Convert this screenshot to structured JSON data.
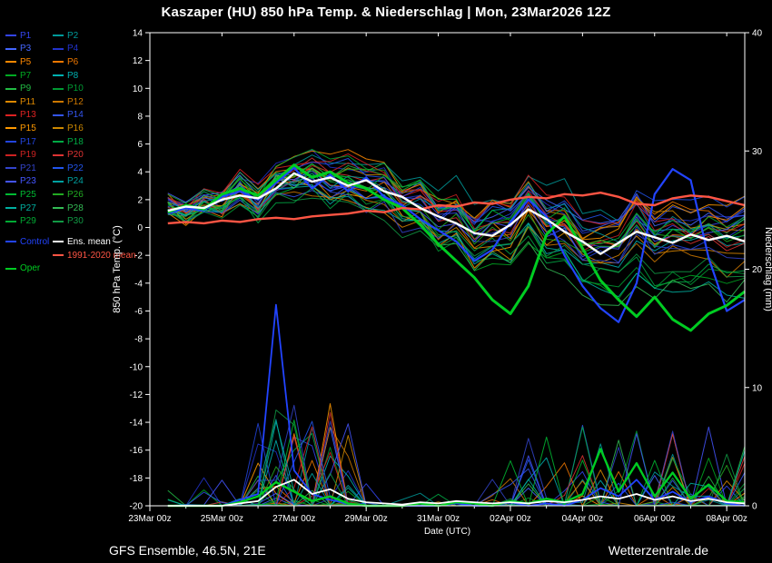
{
  "title": "Kaszaper  (HU)  850 hPa Temp. & Niederschlag | Mon, 23Mar2026 12Z",
  "footer": {
    "left": "GFS Ensemble, 46.5N, 21E",
    "right": "Wetterzentrale.de"
  },
  "chart_data": {
    "type": "line",
    "title": "Kaszaper (HU) 850 hPa Temp. & Niederschlag | Mon, 23Mar2026 12Z",
    "xlabel": "Date (UTC)",
    "ylabel_left": "850 hPa Temp. (°C)",
    "ylabel_right": "Niederschlag (mm)",
    "x_tick_labels": [
      "23Mar 00z",
      "25Mar 00z",
      "27Mar 00z",
      "29Mar 00z",
      "31Mar 00z",
      "02Apr 00z",
      "04Apr 00z",
      "06Apr 00z",
      "08Apr 00z"
    ],
    "x_tick_hours": [
      0,
      48,
      96,
      144,
      192,
      240,
      288,
      336,
      384
    ],
    "x_domain_hours": [
      0,
      396
    ],
    "y_left": {
      "min": -20,
      "max": 14,
      "ticks": [
        14,
        12,
        10,
        8,
        6,
        4,
        2,
        0,
        -2,
        -4,
        -6,
        -8,
        -10,
        -12,
        -14,
        -16,
        -18,
        -20
      ]
    },
    "y_right": {
      "min": 0,
      "max": 40,
      "ticks": [
        40,
        30,
        20,
        10,
        0
      ]
    },
    "grid": false,
    "legend_position": "left",
    "x_hours": [
      12,
      24,
      36,
      48,
      60,
      72,
      84,
      96,
      108,
      120,
      132,
      144,
      156,
      168,
      180,
      192,
      204,
      216,
      228,
      240,
      252,
      264,
      276,
      288,
      300,
      312,
      324,
      336,
      348,
      360,
      372,
      384,
      396
    ],
    "series": {
      "ens_mean_temp": [
        1.2,
        1.5,
        1.4,
        2.0,
        2.3,
        2.1,
        2.8,
        3.9,
        3.3,
        3.6,
        3.0,
        3.4,
        2.6,
        2.2,
        1.4,
        0.8,
        0.3,
        -0.4,
        -0.6,
        0.2,
        1.3,
        0.6,
        -0.3,
        -1.0,
        -1.9,
        -1.1,
        -0.3,
        -0.7,
        -1.1,
        -0.5,
        -0.9,
        -0.6,
        -1.0
      ],
      "control_temp": [
        1.0,
        1.4,
        1.2,
        2.2,
        2.6,
        2.0,
        3.2,
        4.3,
        2.8,
        3.8,
        2.6,
        3.6,
        2.2,
        1.6,
        0.6,
        -0.2,
        -1.0,
        -2.4,
        -1.6,
        0.4,
        2.0,
        0.8,
        -2.0,
        -4.2,
        -5.8,
        -6.8,
        -4.0,
        2.4,
        4.2,
        3.4,
        -2.2,
        -6.0,
        -5.2
      ],
      "oper_temp": [
        1.1,
        1.6,
        1.3,
        2.4,
        2.8,
        2.3,
        3.4,
        4.5,
        3.6,
        4.0,
        3.2,
        2.8,
        2.0,
        1.4,
        0.2,
        -1.2,
        -2.4,
        -3.6,
        -5.2,
        -6.2,
        -4.2,
        -0.5,
        0.8,
        -1.5,
        -3.8,
        -5.2,
        -6.4,
        -5.0,
        -6.6,
        -7.4,
        -6.2,
        -5.6,
        -4.6
      ],
      "clim_mean_temp": [
        0.3,
        0.4,
        0.3,
        0.5,
        0.4,
        0.6,
        0.7,
        0.6,
        0.8,
        0.9,
        1.0,
        1.2,
        1.1,
        1.4,
        1.3,
        1.6,
        1.5,
        1.8,
        1.7,
        2.0,
        2.2,
        2.1,
        2.4,
        2.3,
        2.5,
        2.2,
        1.7,
        1.6,
        2.1,
        2.3,
        2.2,
        1.9,
        1.6
      ],
      "ens_mean_precip": [
        0,
        0,
        0,
        0,
        0.2,
        0.4,
        1.6,
        2.2,
        1.0,
        1.4,
        0.6,
        0.3,
        0.2,
        0.1,
        0.3,
        0.2,
        0.4,
        0.3,
        0.2,
        0.3,
        0.2,
        0.4,
        0.3,
        0.5,
        0.8,
        0.6,
        1.0,
        0.5,
        0.8,
        0.4,
        0.6,
        0.3,
        0.2
      ],
      "control_precip": [
        0,
        0,
        0,
        0,
        0.5,
        1.0,
        17,
        3,
        1,
        0.5,
        0.2,
        0,
        0,
        0,
        0,
        0,
        0.2,
        0,
        0,
        0.3,
        0,
        0.2,
        0,
        0.5,
        1.5,
        0.8,
        2.2,
        0.5,
        1.2,
        0.3,
        0.8,
        0.2,
        0
      ],
      "oper_precip": [
        0,
        0,
        0,
        0,
        0.3,
        0.8,
        2.0,
        1.2,
        0.4,
        0.8,
        0.2,
        0,
        0,
        0,
        0.2,
        0,
        0.3,
        0.2,
        0,
        0.4,
        0.2,
        0.6,
        0.3,
        1.0,
        4.8,
        1.2,
        3.6,
        0.8,
        2.8,
        0.6,
        1.8,
        0.4,
        0.3
      ]
    },
    "special_series": [
      {
        "label": "Control",
        "color": "#2244ff",
        "width": 2.2,
        "temp_key": "control_temp",
        "precip_key": "control_precip"
      },
      {
        "label": "Oper",
        "color": "#00cc22",
        "width": 3.0,
        "temp_key": "oper_temp",
        "precip_key": "oper_precip"
      },
      {
        "label": "1991-2020 mean",
        "color": "#ff5544",
        "width": 2.4,
        "temp_key": "clim_mean_temp"
      },
      {
        "label": "Ens. mean",
        "color": "#ffffff",
        "width": 2.4,
        "temp_key": "ens_mean_temp",
        "precip_key": "ens_mean_precip"
      }
    ],
    "members": [
      {
        "label": "P1",
        "color": "#3344ee",
        "seed": 1
      },
      {
        "label": "P2",
        "color": "#009999",
        "seed": 2
      },
      {
        "label": "P3",
        "color": "#4466ff",
        "seed": 3
      },
      {
        "label": "P4",
        "color": "#2233cc",
        "seed": 4
      },
      {
        "label": "P5",
        "color": "#ff8800",
        "seed": 5
      },
      {
        "label": "P6",
        "color": "#ee7700",
        "seed": 6
      },
      {
        "label": "P7",
        "color": "#00aa22",
        "seed": 7
      },
      {
        "label": "P8",
        "color": "#00b0b0",
        "seed": 8
      },
      {
        "label": "P9",
        "color": "#22bb44",
        "seed": 9
      },
      {
        "label": "P10",
        "color": "#009933",
        "seed": 10
      },
      {
        "label": "P11",
        "color": "#dd8800",
        "seed": 11
      },
      {
        "label": "P12",
        "color": "#cc7700",
        "seed": 12
      },
      {
        "label": "P13",
        "color": "#dd2222",
        "seed": 13
      },
      {
        "label": "P14",
        "color": "#3355ee",
        "seed": 14
      },
      {
        "label": "P15",
        "color": "#ff9900",
        "seed": 15
      },
      {
        "label": "P16",
        "color": "#cc8800",
        "seed": 16
      },
      {
        "label": "P17",
        "color": "#2244dd",
        "seed": 17
      },
      {
        "label": "P18",
        "color": "#00aa44",
        "seed": 18
      },
      {
        "label": "P19",
        "color": "#cc2222",
        "seed": 19
      },
      {
        "label": "P20",
        "color": "#dd3333",
        "seed": 20
      },
      {
        "label": "P21",
        "color": "#3344cc",
        "seed": 21
      },
      {
        "label": "P22",
        "color": "#2255ee",
        "seed": 22
      },
      {
        "label": "P23",
        "color": "#4455ff",
        "seed": 23
      },
      {
        "label": "P24",
        "color": "#00a0a0",
        "seed": 24
      },
      {
        "label": "P25",
        "color": "#00bb33",
        "seed": 25
      },
      {
        "label": "P26",
        "color": "#22aa22",
        "seed": 26
      },
      {
        "label": "P27",
        "color": "#00b0a0",
        "seed": 27
      },
      {
        "label": "P28",
        "color": "#33bb55",
        "seed": 28
      },
      {
        "label": "P29",
        "color": "#00aa33",
        "seed": 29
      },
      {
        "label": "P30",
        "color": "#119944",
        "seed": 30
      }
    ]
  }
}
